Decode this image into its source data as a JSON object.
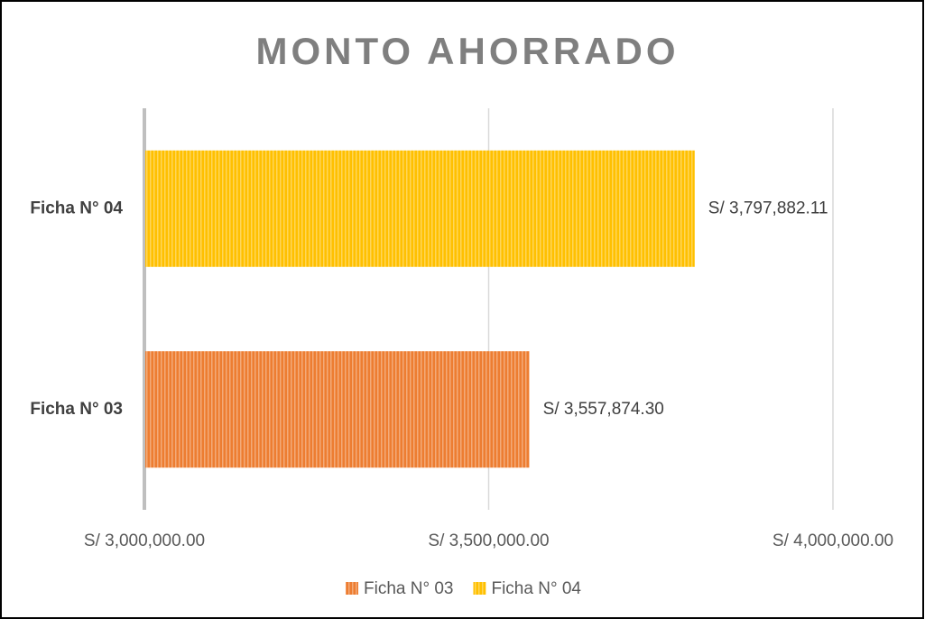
{
  "chart_data": {
    "type": "bar",
    "orientation": "horizontal",
    "title": "MONTO AHORRADO",
    "categories": [
      "Ficha N° 03",
      "Ficha N° 04"
    ],
    "series": [
      {
        "name": "Ficha N° 03",
        "color": "#ED7D31",
        "values": [
          3557874.3,
          null
        ],
        "value_labels": [
          "S/ 3,557,874.30",
          null
        ]
      },
      {
        "name": "Ficha N° 04",
        "color": "#FFC000",
        "values": [
          null,
          3797882.11
        ],
        "value_labels": [
          null,
          "S/ 3,797,882.11"
        ]
      }
    ],
    "xlim": [
      3000000,
      4000000
    ],
    "xticks": [
      {
        "value": 3000000,
        "label": "S/ 3,000,000.00"
      },
      {
        "value": 3500000,
        "label": "S/ 3,500,000.00"
      },
      {
        "value": 4000000,
        "label": "S/ 4,000,000.00"
      }
    ],
    "grid": true,
    "legend": "bottom"
  }
}
